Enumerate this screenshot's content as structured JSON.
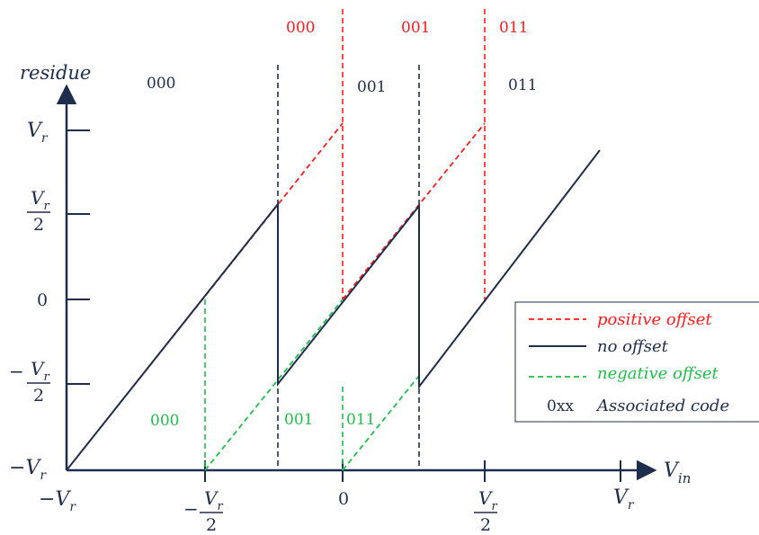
{
  "axes": {
    "y_label": "residue",
    "x_label": "V",
    "x_label_sub": "in"
  },
  "y_ticks": {
    "vr_top": {
      "main": "V",
      "sub": "r"
    },
    "half_top": {
      "main": "V",
      "sub": "r",
      "den": "2"
    },
    "zero": "0",
    "neg_half": {
      "sign": "−",
      "main": "V",
      "sub": "r",
      "den": "2"
    },
    "neg_vr": {
      "sign": "−",
      "main": "V",
      "sub": "r"
    }
  },
  "x_ticks": {
    "neg_vr": {
      "sign": "−",
      "main": "V",
      "sub": "r"
    },
    "neg_half": {
      "sign": "−",
      "main": "V",
      "sub": "r",
      "den": "2"
    },
    "zero": "0",
    "half": {
      "main": "V",
      "sub": "r",
      "den": "2"
    },
    "vr": {
      "main": "V",
      "sub": "r"
    }
  },
  "codes": {
    "nominal": [
      "000",
      "001",
      "011"
    ],
    "positive": [
      "000",
      "001",
      "011"
    ],
    "negative": [
      "000",
      "001",
      "011"
    ]
  },
  "legend": {
    "positive": "positive offset",
    "none": "no offset",
    "negative": "negative offset",
    "code_sample": "0xx",
    "code": "Associated code"
  },
  "colors": {
    "navy": "#1f2d4d",
    "red": "#ff1a1a",
    "green": "#1fbf4a"
  }
}
